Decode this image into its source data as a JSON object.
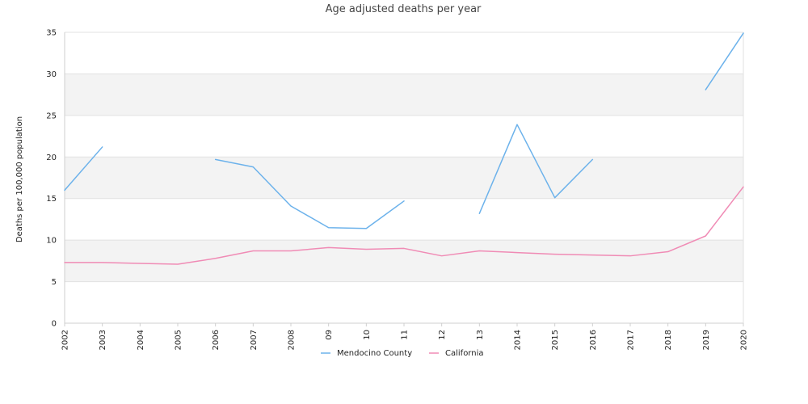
{
  "chart_data": {
    "type": "line",
    "title": "Age adjusted deaths per year",
    "ylabel": "Deaths per 100,000 population",
    "xlabel": "",
    "categories": [
      "2002",
      "2003",
      "2004",
      "2005",
      "2006",
      "2007",
      "2008",
      "09",
      "10",
      "11",
      "12",
      "13",
      "2014",
      "2015",
      "2016",
      "2017",
      "2018",
      "2019",
      "2020"
    ],
    "ylim": [
      0,
      35
    ],
    "yticks": [
      "0",
      "5",
      "10",
      "15",
      "20",
      "25",
      "30",
      "35"
    ],
    "legend_position": "bottom",
    "grid": "alternating horizontal bands",
    "series": [
      {
        "name": "Mendocino County",
        "color": "#6cb2eb",
        "values": [
          16.0,
          21.2,
          null,
          null,
          19.7,
          18.8,
          14.1,
          11.5,
          11.4,
          14.7,
          null,
          13.2,
          23.9,
          15.1,
          19.7,
          null,
          null,
          28.1,
          34.9
        ]
      },
      {
        "name": "California",
        "color": "#f08bb5",
        "values": [
          7.3,
          7.3,
          7.2,
          7.1,
          7.8,
          8.7,
          8.7,
          9.1,
          8.9,
          9.0,
          8.1,
          8.7,
          8.5,
          8.3,
          8.2,
          8.1,
          8.6,
          10.5,
          16.4
        ]
      }
    ]
  }
}
